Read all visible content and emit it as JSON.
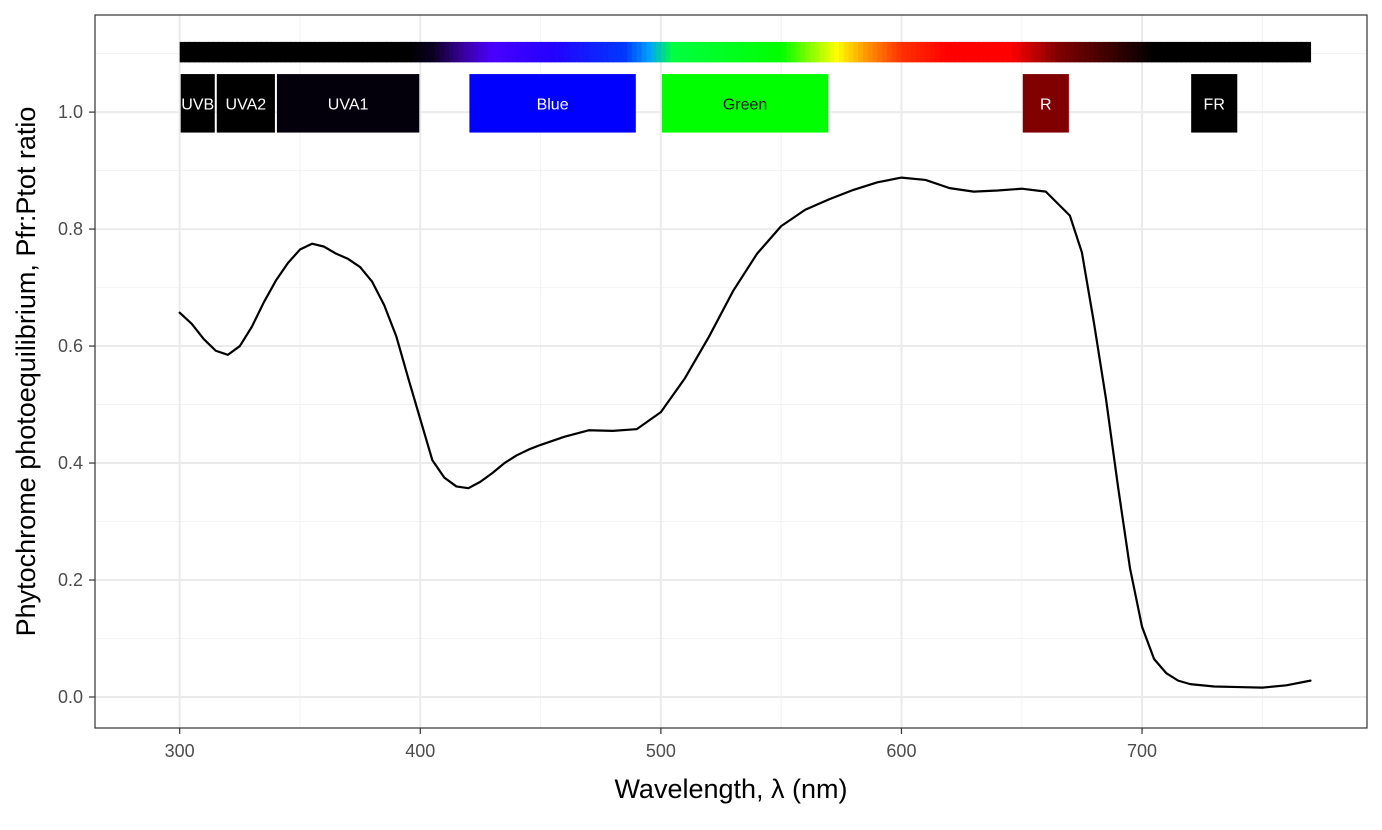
{
  "chart_data": {
    "type": "line",
    "title": "",
    "xlabel": "Wavelength, λ (nm)",
    "ylabel": "Phytochrome photoequilibrium, Pfr:Ptot ratio",
    "xlim": [
      264.8,
      793.5
    ],
    "ylim": [
      -0.053,
      1.166
    ],
    "x_ticks": [
      300,
      400,
      500,
      600,
      700
    ],
    "y_ticks": [
      0.0,
      0.2,
      0.4,
      0.6,
      0.8,
      1.0
    ],
    "x_tick_labels": [
      "300",
      "400",
      "500",
      "600",
      "700"
    ],
    "y_tick_labels": [
      "0.0",
      "0.2",
      "0.4",
      "0.6",
      "0.8",
      "1.0"
    ],
    "grid": true,
    "series": [
      {
        "color": "#000000",
        "x": [
          300,
          305,
          310,
          315,
          320,
          325,
          330,
          335,
          340,
          345,
          350,
          355,
          360,
          365,
          370,
          375,
          380,
          385,
          390,
          395,
          400,
          405,
          410,
          415,
          420,
          425,
          430,
          435,
          440,
          445,
          450,
          460,
          470,
          480,
          490,
          500,
          510,
          520,
          530,
          540,
          550,
          560,
          570,
          580,
          590,
          600,
          610,
          620,
          630,
          640,
          650,
          660,
          670,
          675,
          680,
          685,
          690,
          695,
          700,
          705,
          710,
          715,
          720,
          730,
          740,
          750,
          760,
          770
        ],
        "y": [
          0.657,
          0.638,
          0.612,
          0.592,
          0.585,
          0.6,
          0.633,
          0.675,
          0.712,
          0.742,
          0.765,
          0.775,
          0.77,
          0.758,
          0.749,
          0.735,
          0.71,
          0.67,
          0.617,
          0.545,
          0.475,
          0.405,
          0.375,
          0.36,
          0.357,
          0.368,
          0.383,
          0.4,
          0.413,
          0.423,
          0.431,
          0.445,
          0.456,
          0.455,
          0.458,
          0.487,
          0.545,
          0.616,
          0.694,
          0.758,
          0.805,
          0.833,
          0.851,
          0.867,
          0.88,
          0.888,
          0.884,
          0.87,
          0.864,
          0.866,
          0.869,
          0.864,
          0.823,
          0.76,
          0.64,
          0.51,
          0.36,
          0.22,
          0.12,
          0.065,
          0.041,
          0.028,
          0.022,
          0.018,
          0.017,
          0.016,
          0.02,
          0.028
        ]
      }
    ],
    "colour_band": {
      "x_start": 300,
      "x_end": 770,
      "stops": [
        {
          "wl": 300,
          "color": "#000000"
        },
        {
          "wl": 395,
          "color": "#000000"
        },
        {
          "wl": 405,
          "color": "#0a0020"
        },
        {
          "wl": 418,
          "color": "#3a00a0"
        },
        {
          "wl": 430,
          "color": "#4a00ff"
        },
        {
          "wl": 455,
          "color": "#2400ff"
        },
        {
          "wl": 485,
          "color": "#0038ff"
        },
        {
          "wl": 495,
          "color": "#00a0ff"
        },
        {
          "wl": 505,
          "color": "#00ff40"
        },
        {
          "wl": 550,
          "color": "#00ff00"
        },
        {
          "wl": 560,
          "color": "#70ff00"
        },
        {
          "wl": 573,
          "color": "#ffff00"
        },
        {
          "wl": 585,
          "color": "#ff9900"
        },
        {
          "wl": 600,
          "color": "#ff3000"
        },
        {
          "wl": 620,
          "color": "#ff0000"
        },
        {
          "wl": 645,
          "color": "#ff0000"
        },
        {
          "wl": 665,
          "color": "#800000"
        },
        {
          "wl": 690,
          "color": "#300000"
        },
        {
          "wl": 705,
          "color": "#000000"
        },
        {
          "wl": 770,
          "color": "#000000"
        }
      ]
    },
    "wavebands": [
      {
        "label": "UVB",
        "x0": 300,
        "x1": 315,
        "fill": "#000000",
        "text_color": "#ffffff"
      },
      {
        "label": "UVA2",
        "x0": 315,
        "x1": 340,
        "fill": "#000000",
        "text_color": "#ffffff"
      },
      {
        "label": "UVA1",
        "x0": 340,
        "x1": 400,
        "fill": "#03000c",
        "text_color": "#ffffff"
      },
      {
        "label": "Blue",
        "x0": 420,
        "x1": 490,
        "fill": "#0000ff",
        "text_color": "#ffffff"
      },
      {
        "label": "Green",
        "x0": 500,
        "x1": 570,
        "fill": "#00ff00",
        "text_color": "#1a1a1a"
      },
      {
        "label": "R",
        "x0": 650,
        "x1": 670,
        "fill": "#800000",
        "text_color": "#ffffff"
      },
      {
        "label": "FR",
        "x0": 720,
        "x1": 740,
        "fill": "#000000",
        "text_color": "#ffffff"
      }
    ]
  }
}
